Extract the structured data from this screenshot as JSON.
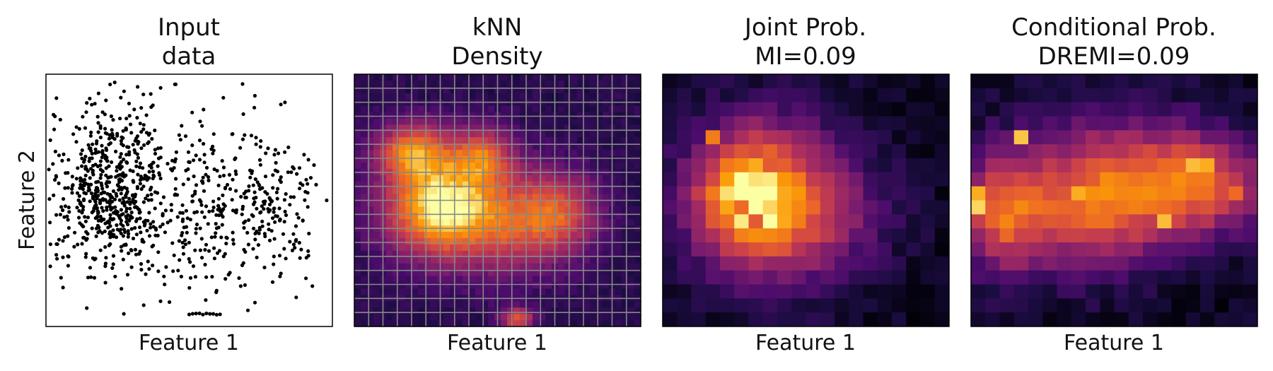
{
  "chart_data": [
    {
      "type": "scatter",
      "title": [
        "Input",
        "data"
      ],
      "xlabel": "Feature 1",
      "ylabel": "Feature 2",
      "xlim": [
        0,
        100
      ],
      "ylim": [
        0,
        100
      ],
      "ticks": "none",
      "marker_color": "#000000",
      "n_points": 1000,
      "density_clusters": [
        {
          "x": 22,
          "y": 55,
          "sx": 10,
          "sy": 17,
          "weight": 0.55
        },
        {
          "x": 50,
          "y": 47,
          "sx": 16,
          "sy": 20,
          "weight": 0.3
        },
        {
          "x": 78,
          "y": 46,
          "sx": 9,
          "sy": 14,
          "weight": 0.15
        }
      ],
      "sparse_points": [
        [
          32,
          95
        ],
        [
          45,
          96
        ],
        [
          34,
          92
        ],
        [
          5,
          82
        ],
        [
          55,
          86
        ],
        [
          82,
          88
        ],
        [
          98,
          50
        ],
        [
          93,
          16
        ],
        [
          68,
          16
        ],
        [
          40,
          10
        ]
      ],
      "bottom_row": {
        "x_from": 50,
        "x_to": 62,
        "y": 5
      }
    },
    {
      "type": "heatmap",
      "title": [
        "kNN",
        "Density"
      ],
      "xlabel": "Feature 1",
      "colormap": "inferno",
      "resolution": [
        45,
        40
      ],
      "grid_overlay": {
        "cells": [
          20,
          18
        ],
        "color": "#888888"
      },
      "density_peaks": [
        {
          "x": 30,
          "y": 47,
          "sx": 14,
          "sy": 14,
          "amp": 0.85
        },
        {
          "x": 20,
          "y": 70,
          "sx": 9,
          "sy": 8,
          "amp": 0.55
        },
        {
          "x": 45,
          "y": 68,
          "sx": 8,
          "sy": 8,
          "amp": 0.45
        },
        {
          "x": 72,
          "y": 45,
          "sx": 10,
          "sy": 12,
          "amp": 0.45
        },
        {
          "x": 55,
          "y": 40,
          "sx": 12,
          "sy": 14,
          "amp": 0.35
        },
        {
          "x": 57,
          "y": 3,
          "sx": 4,
          "sy": 3,
          "amp": 0.55
        }
      ]
    },
    {
      "type": "heatmap",
      "title": [
        "Joint Prob.",
        "MI=0.09"
      ],
      "xlabel": "Feature 1",
      "colormap": "inferno",
      "cells": [
        20,
        18
      ],
      "peaks": [
        {
          "x": 7.5,
          "y": 9,
          "sx": 3.5,
          "sy": 4,
          "amp": 0.65
        },
        {
          "x": 5,
          "y": 9.5,
          "sx": 2.5,
          "sy": 3,
          "amp": 0.4
        },
        {
          "x": 12,
          "y": 8,
          "sx": 3.5,
          "sy": 3,
          "amp": 0.2
        }
      ],
      "hot_cells": [
        [
          7,
          8,
          0.95
        ],
        [
          5,
          8,
          0.75
        ],
        [
          3,
          8,
          0.7
        ],
        [
          3,
          13,
          0.8
        ],
        [
          7,
          11,
          0.7
        ],
        [
          6,
          7,
          0.7
        ]
      ]
    },
    {
      "type": "heatmap",
      "title": [
        "Conditional Prob.",
        "DREMI=0.09"
      ],
      "xlabel": "Feature 1",
      "colormap": "inferno",
      "cells": [
        20,
        18
      ],
      "peaks": [
        {
          "x": 8,
          "y": 8,
          "sx": 4,
          "sy": 3,
          "amp": 0.55
        },
        {
          "x": 16,
          "y": 10,
          "sx": 3.5,
          "sy": 2.5,
          "amp": 0.55
        },
        {
          "x": 2,
          "y": 8,
          "sx": 2,
          "sy": 3,
          "amp": 0.5
        },
        {
          "x": 10,
          "y": 12,
          "sx": 5,
          "sy": 3,
          "amp": 0.3
        }
      ],
      "hot_cells": [
        [
          0,
          8,
          0.95
        ],
        [
          0,
          9,
          0.9
        ],
        [
          7,
          9,
          0.9
        ],
        [
          13,
          7,
          0.92
        ],
        [
          15,
          11,
          0.92
        ],
        [
          16,
          11,
          0.9
        ],
        [
          3,
          13,
          0.93
        ],
        [
          18,
          9,
          0.75
        ]
      ]
    }
  ]
}
